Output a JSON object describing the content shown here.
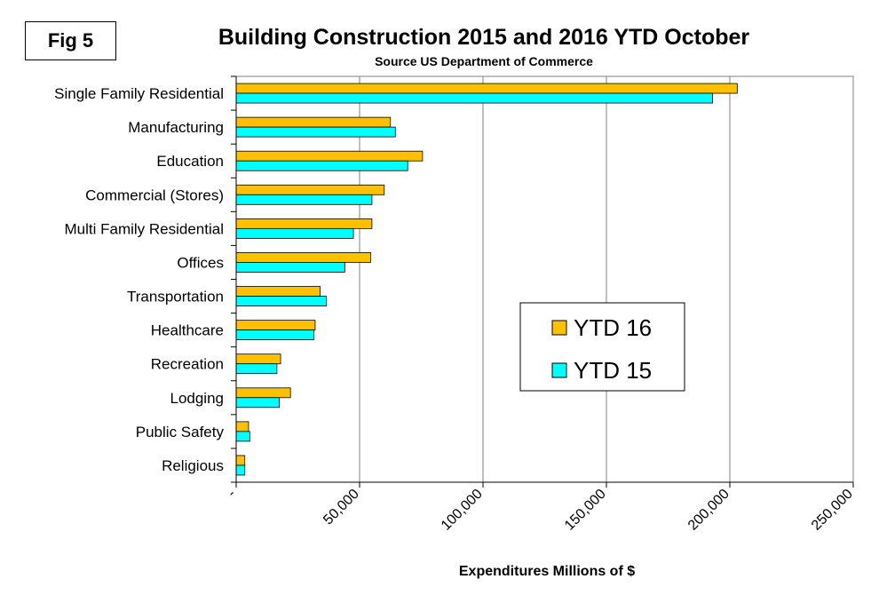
{
  "fig_label": "Fig 5",
  "chart_data": {
    "type": "bar",
    "orientation": "horizontal",
    "title": "Building Construction 2015 and 2016  YTD October",
    "subtitle": "Source US Department of Commerce",
    "xlabel": "Expenditures Millions of $",
    "ylabel": "",
    "xlim": [
      0,
      250000
    ],
    "xticks": [
      0,
      50000,
      100000,
      150000,
      200000,
      250000
    ],
    "xtick_labels": [
      "-",
      "50,000",
      "100,000",
      "150,000",
      "200,000",
      "250,000"
    ],
    "grid": true,
    "legend_position": "center-right",
    "categories": [
      "Single Family Residential",
      "Manufacturing",
      "Education",
      "Commercial (Stores)",
      "Multi Family Residential",
      "Offices",
      "Transportation",
      "Healthcare",
      "Recreation",
      "Lodging",
      "Public Safety",
      "Religious"
    ],
    "series": [
      {
        "name": "YTD 16",
        "color": "#FFC000",
        "values": [
          203000,
          62500,
          75500,
          60000,
          55000,
          54500,
          34000,
          32000,
          18000,
          22000,
          5000,
          3500
        ]
      },
      {
        "name": "YTD 15",
        "color": "#00FFFF",
        "values": [
          193000,
          64500,
          69500,
          55000,
          47500,
          44000,
          36500,
          31500,
          16500,
          17500,
          5500,
          3500
        ]
      }
    ]
  }
}
